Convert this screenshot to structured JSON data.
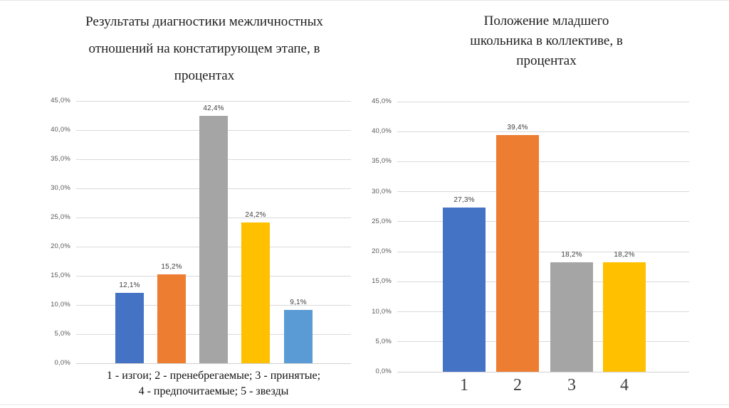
{
  "page": {
    "background": "#ffffff",
    "edge_line_color": "#e7e7e7"
  },
  "chart_style": {
    "gridline_color": "#d9d9d9",
    "axis_line_color": "#d0d0d0",
    "tick_label_color": "#595959",
    "data_label_color": "#404040",
    "x_category_label_color": "#404040"
  },
  "chart_data": [
    {
      "type": "bar",
      "title": "Результаты диагностики межличностных отношений на констатирующем этапе, в процентах",
      "title_lines": [
        "Результаты диагностики межличностных",
        "отношений на констатирующем этапе, в",
        "процентах"
      ],
      "categories": [
        "1",
        "2",
        "3",
        "4",
        "5"
      ],
      "values": [
        12.1,
        15.2,
        42.4,
        24.2,
        9.1
      ],
      "data_labels": [
        "12,1%",
        "15,2%",
        "42,4%",
        "24,2%",
        "9,1%"
      ],
      "bar_colors": [
        "#4472C4",
        "#ED7D31",
        "#A5A5A5",
        "#FFC000",
        "#5B9BD5"
      ],
      "ylim": [
        0,
        45
      ],
      "ytick_step": 5,
      "ytick_labels": [
        "0,0%",
        "5,0%",
        "10,0%",
        "15,0%",
        "20,0%",
        "25,0%",
        "30,0%",
        "35,0%",
        "40,0%",
        "45,0%"
      ],
      "grid": true,
      "legend": "none",
      "x_axis_labels_visible": false,
      "xlabel": "1 - изгои; 2 - пренебрегаемые; 3 - принятые; 4 - предпочитаемые; 5 - звезды",
      "xlabel_lines": [
        "1 - изгои; 2 - пренебрегаемые; 3 - принятые;",
        "4 - предпочитаемые; 5 - звезды"
      ]
    },
    {
      "type": "bar",
      "title": "Положение младшего школьника в коллективе, в процентах",
      "title_lines": [
        "Положение младшего",
        "школьника в коллективе, в",
        "процентах"
      ],
      "categories": [
        "1",
        "2",
        "3",
        "4"
      ],
      "values": [
        27.3,
        39.4,
        18.2,
        18.2
      ],
      "data_labels": [
        "27,3%",
        "39,4%",
        "18,2%",
        "18,2%"
      ],
      "bar_colors": [
        "#4472C4",
        "#ED7D31",
        "#A5A5A5",
        "#FFC000"
      ],
      "ylim": [
        0,
        45
      ],
      "ytick_step": 5,
      "ytick_labels": [
        "0,0%",
        "5,0%",
        "10,0%",
        "15,0%",
        "20,0%",
        "25,0%",
        "30,0%",
        "35,0%",
        "40,0%",
        "45,0%"
      ],
      "grid": true,
      "legend": "none",
      "x_axis_labels_visible": true,
      "xlabel": ""
    }
  ]
}
